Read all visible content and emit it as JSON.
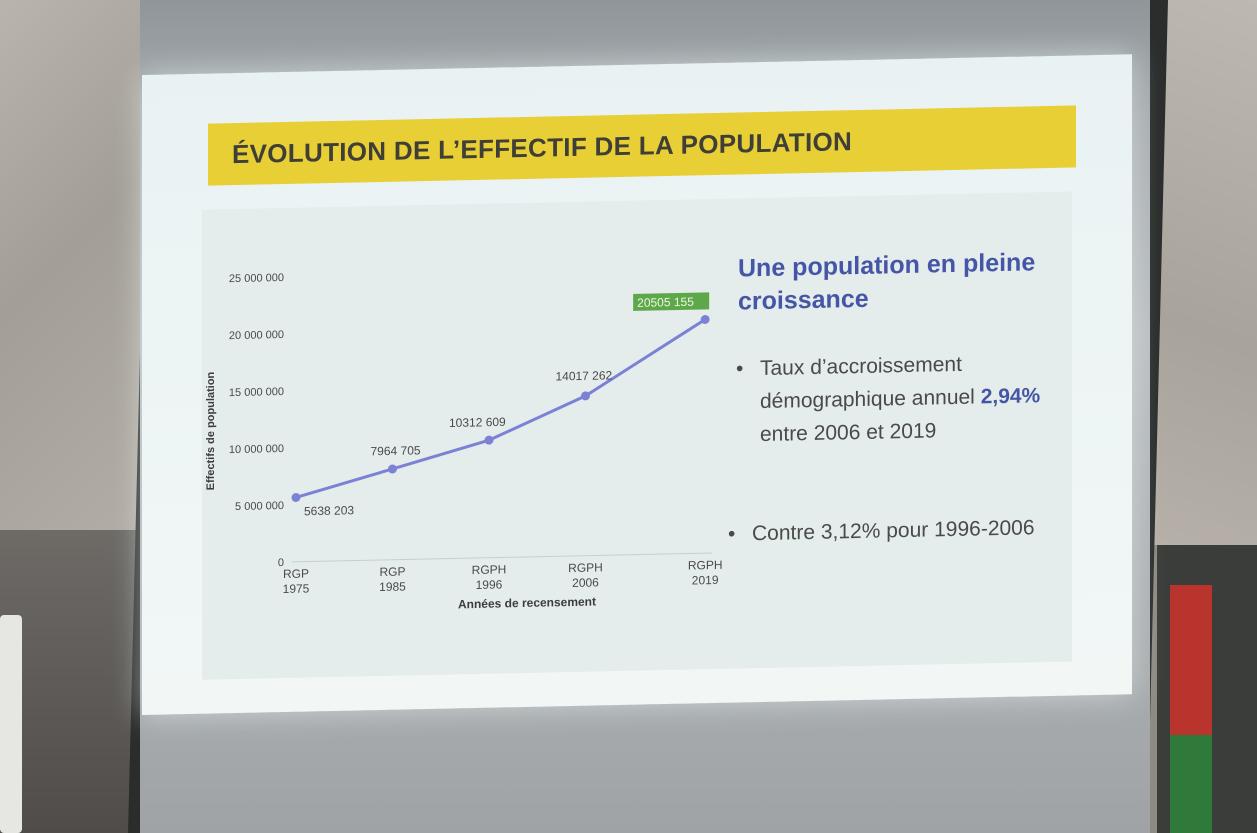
{
  "slide": {
    "title": "ÉVOLUTION DE L’EFFECTIF DE LA POPULATION",
    "headline": "Une population en pleine croissance",
    "bullet1_text": "Taux d’accroissement démographique annuel",
    "bullet1_highlight": "2,94%",
    "bullet1_rest": "entre 2006 et 2019",
    "bullet2_text": "Contre 3,12% pour 1996-2006",
    "bullet_symbol": "•"
  },
  "chart_data": {
    "type": "line",
    "categories": [
      "RGP\n1975",
      "RGP\n1985",
      "RGPH\n1996",
      "RGPH\n2006",
      "RGPH\n2019"
    ],
    "x": [
      1975,
      1985,
      1996,
      2006,
      2019
    ],
    "values": [
      5638203,
      7964705,
      10312609,
      14017262,
      20505155
    ],
    "data_labels": [
      "5638 203",
      "7964 705",
      "10312 609",
      "14017 262",
      "20505 155"
    ],
    "ylabel": "Effectifs de population",
    "xlabel": "Années de recensement",
    "ylim": [
      0,
      25000000
    ],
    "yticks": [
      0,
      5000000,
      10000000,
      15000000,
      20000000,
      25000000
    ],
    "ytick_labels": [
      "0",
      "5 000 000",
      "10 000 000",
      "15 000 000",
      "20 000 000",
      "25 000 000"
    ],
    "grid": false,
    "colors": {
      "line": "#7b82d6",
      "last_label_bg": "#5fa84a",
      "last_label_text": "#eef5e8"
    }
  }
}
